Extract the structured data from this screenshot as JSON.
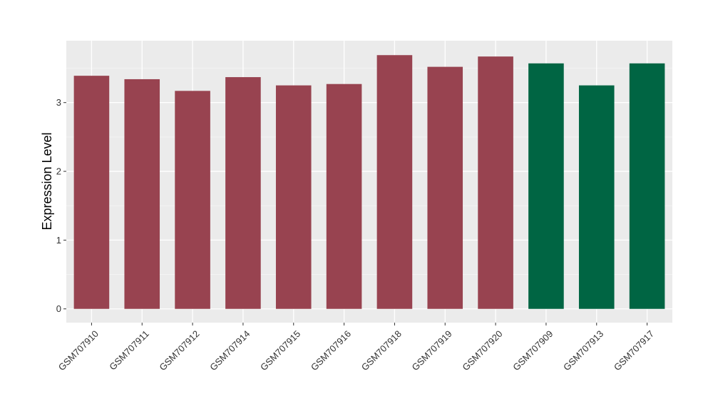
{
  "chart_data": {
    "type": "bar",
    "title": "",
    "xlabel": "",
    "ylabel": "Expression Level",
    "ylim": [
      -0.2,
      3.9
    ],
    "yticks": [
      0,
      1,
      2,
      3
    ],
    "ytick_labels": [
      "0",
      "1",
      "2",
      "3"
    ],
    "grid": true,
    "background": "#EBEBEB",
    "categories": [
      "GSM707910",
      "GSM707911",
      "GSM707912",
      "GSM707914",
      "GSM707915",
      "GSM707916",
      "GSM707918",
      "GSM707919",
      "GSM707920",
      "GSM707909",
      "GSM707913",
      "GSM707917"
    ],
    "values": [
      3.39,
      3.34,
      3.17,
      3.37,
      3.25,
      3.27,
      3.69,
      3.52,
      3.67,
      3.57,
      3.25,
      3.57
    ],
    "bar_colors": [
      "#984350",
      "#984350",
      "#984350",
      "#984350",
      "#984350",
      "#984350",
      "#984350",
      "#984350",
      "#984350",
      "#006543",
      "#006543",
      "#006543"
    ]
  }
}
